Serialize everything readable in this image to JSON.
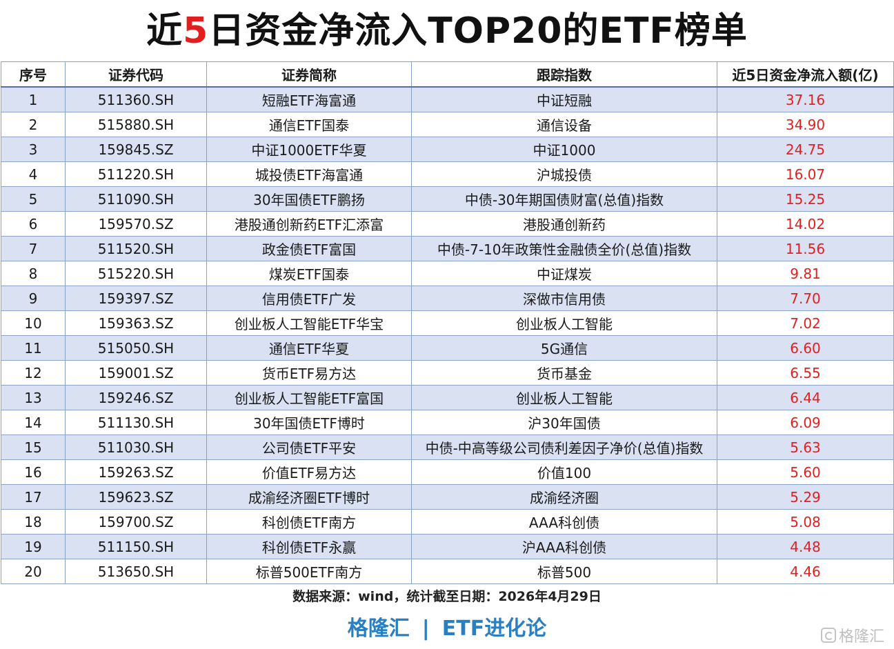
{
  "title": {
    "pre": "近",
    "highlight": "5",
    "post": "日资金净流入TOP20的ETF榜单"
  },
  "table": {
    "headers": [
      "序号",
      "证券代码",
      "证券简称",
      "跟踪指数",
      "近5日资金净流入额(亿)"
    ],
    "rows": [
      [
        "1",
        "511360.SH",
        "短融ETF海富通",
        "中证短融",
        "37.16"
      ],
      [
        "2",
        "515880.SH",
        "通信ETF国泰",
        "通信设备",
        "34.90"
      ],
      [
        "3",
        "159845.SZ",
        "中证1000ETF华夏",
        "中证1000",
        "24.75"
      ],
      [
        "4",
        "511220.SH",
        "城投债ETF海富通",
        "沪城投债",
        "16.07"
      ],
      [
        "5",
        "511090.SH",
        "30年国债ETF鹏扬",
        "中债-30年期国债财富(总值)指数",
        "15.25"
      ],
      [
        "6",
        "159570.SZ",
        "港股通创新药ETF汇添富",
        "港股通创新药",
        "14.02"
      ],
      [
        "7",
        "511520.SH",
        "政金债ETF富国",
        "中债-7-10年政策性金融债全价(总值)指数",
        "11.56"
      ],
      [
        "8",
        "515220.SH",
        "煤炭ETF国泰",
        "中证煤炭",
        "9.81"
      ],
      [
        "9",
        "159397.SZ",
        "信用债ETF广发",
        "深做市信用债",
        "7.70"
      ],
      [
        "10",
        "159363.SZ",
        "创业板人工智能ETF华宝",
        "创业板人工智能",
        "7.02"
      ],
      [
        "11",
        "515050.SH",
        "通信ETF华夏",
        "5G通信",
        "6.60"
      ],
      [
        "12",
        "159001.SZ",
        "货币ETF易方达",
        "货币基金",
        "6.55"
      ],
      [
        "13",
        "159246.SZ",
        "创业板人工智能ETF富国",
        "创业板人工智能",
        "6.44"
      ],
      [
        "14",
        "511130.SH",
        "30年国债ETF博时",
        "沪30年国债",
        "6.09"
      ],
      [
        "15",
        "511030.SH",
        "公司债ETF平安",
        "中债-中高等级公司债利差因子净价(总值)指数",
        "5.63"
      ],
      [
        "16",
        "159263.SZ",
        "价值ETF易方达",
        "价值100",
        "5.60"
      ],
      [
        "17",
        "159623.SZ",
        "成渝经济圈ETF博时",
        "成渝经济圈",
        "5.29"
      ],
      [
        "18",
        "159700.SZ",
        "科创债ETF南方",
        "AAA科创债",
        "5.08"
      ],
      [
        "19",
        "511150.SH",
        "科创债ETF永赢",
        "沪AAA科创债",
        "4.48"
      ],
      [
        "20",
        "513650.SH",
        "标普500ETF南方",
        "标普500",
        "4.46"
      ]
    ]
  },
  "source": "数据来源：wind，统计截至日期：2026年4月29日",
  "footer": {
    "brand": "格隆汇",
    "separator": "|",
    "column": "ETF进化论"
  },
  "watermark": {
    "icon": "brand-logo-icon",
    "text": "格隆汇"
  },
  "colors": {
    "accent_red": "#e41e1e",
    "row_stripe": "#d9e1f2",
    "footer_blue": "#2a7fc1"
  }
}
